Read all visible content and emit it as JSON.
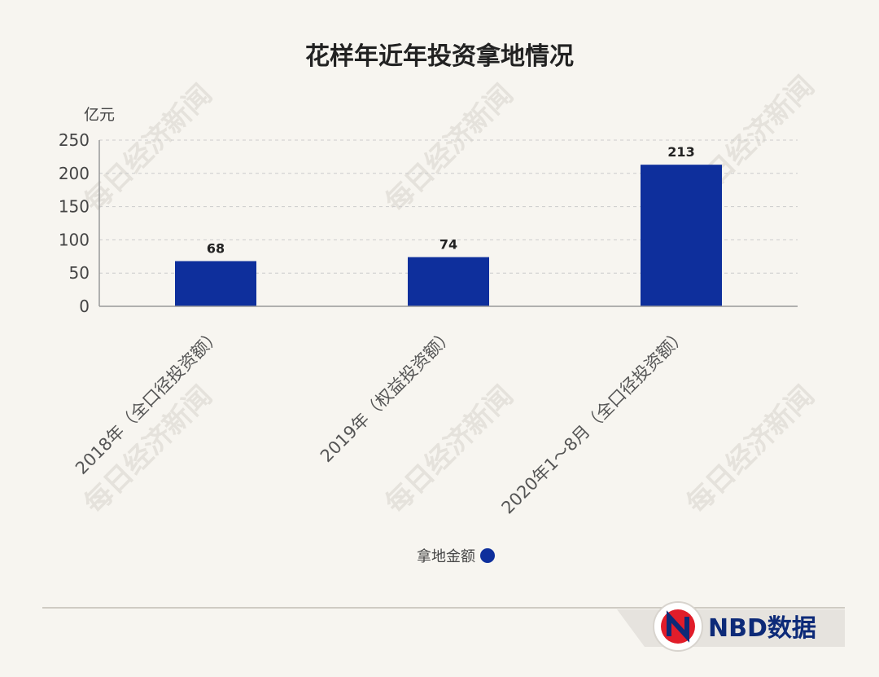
{
  "chart_data": {
    "type": "bar",
    "title": "花样年近年投资拿地情况",
    "ylabel": "亿元",
    "categories": [
      "2018年（全口径投资额）",
      "2019年（权益投资额）",
      "2020年1～8月（全口径投资额）"
    ],
    "series": [
      {
        "name": "拿地金额",
        "values": [
          68,
          74,
          213
        ]
      }
    ],
    "data_labels": [
      "68",
      "74",
      "213"
    ],
    "yticks": [
      "0",
      "50",
      "100",
      "150",
      "200",
      "250"
    ],
    "ylim": [
      0,
      250
    ],
    "grid": true,
    "legend": "bottom-center"
  },
  "watermark": "每日经济新闻",
  "brand": {
    "text": "NBD数据",
    "logo_letter": "N"
  },
  "colors": {
    "bar": "#0e2f9c",
    "grid": "#cccccc",
    "axis": "#999999"
  }
}
